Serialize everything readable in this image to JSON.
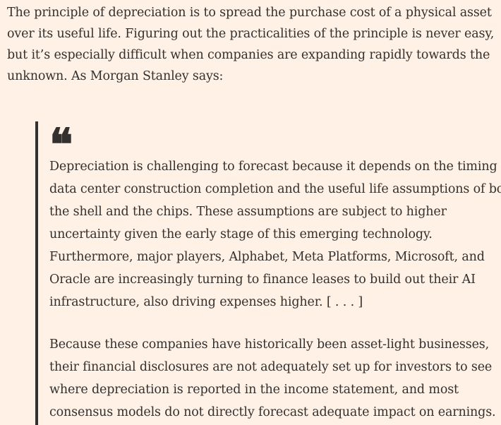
{
  "article": {
    "intro": "The principle of depreciation is to spread the purchase cost of a physical asset over its useful life. Figuring out the practicalities of the principle is never easy, but it’s especially difficult when companies are expanding rapidly towards the unknown. As Morgan Stanley says:",
    "quote": {
      "mark": "❝",
      "paragraphs": [
        "Depreciation is challenging to forecast because it depends on the timing of data center construction completion and the useful life assumptions of both the shell and the chips. These assumptions are subject to higher uncertainty given the early stage of this emerging technology. Furthermore, major players, Alphabet, Meta Platforms, Microsoft, and Oracle are increasingly turning to finance leases to build out their AI infrastructure, also driving expenses higher. [ . . . ]",
        "Because these companies have historically been asset-light businesses, their financial disclosures are not adequately set up for investors to see where depreciation is reported in the income statement, and most consensus models do not directly forecast adequate impact on earnings."
      ]
    }
  }
}
